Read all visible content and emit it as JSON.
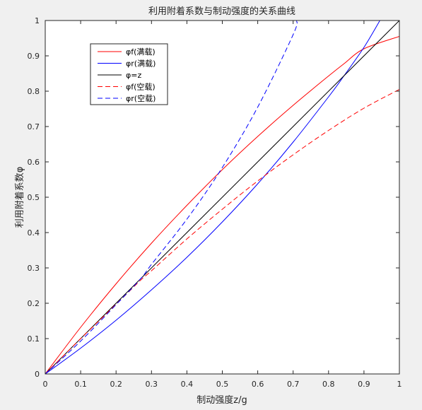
{
  "chart_data": {
    "type": "line",
    "title": "利用附着系数与制动强度的关系曲线",
    "xlabel": "制动强度z/g",
    "ylabel": "利用附着系数φ",
    "xlim": [
      0,
      1
    ],
    "ylim": [
      0,
      1
    ],
    "xticks": [
      "0",
      "0.1",
      "0.2",
      "0.3",
      "0.4",
      "0.5",
      "0.6",
      "0.7",
      "0.8",
      "0.9",
      "1"
    ],
    "yticks": [
      "0",
      "0.1",
      "0.2",
      "0.3",
      "0.4",
      "0.5",
      "0.6",
      "0.7",
      "0.8",
      "0.9",
      "1"
    ],
    "grid": false,
    "legend_position": "upper-left",
    "series": [
      {
        "name": "φf(满载)",
        "color": "#ff0000",
        "dash": "solid",
        "x": [
          0,
          0.1,
          0.2,
          0.3,
          0.4,
          0.5,
          0.6,
          0.7,
          0.8,
          0.844,
          0.9,
          1.0
        ],
        "y": [
          0,
          0.132,
          0.255,
          0.37,
          0.477,
          0.578,
          0.672,
          0.76,
          0.843,
          0.878,
          0.92,
          0.955
        ]
      },
      {
        "name": "φr(满载)",
        "color": "#0000ff",
        "dash": "solid",
        "x": [
          0,
          0.1,
          0.2,
          0.3,
          0.4,
          0.5,
          0.6,
          0.7,
          0.8,
          0.844,
          0.9,
          0.945
        ],
        "y": [
          0,
          0.073,
          0.152,
          0.238,
          0.33,
          0.43,
          0.538,
          0.656,
          0.784,
          0.844,
          0.924,
          1.0
        ]
      },
      {
        "name": "φ=z",
        "color": "#000000",
        "dash": "solid",
        "x": [
          0,
          1
        ],
        "y": [
          0,
          1
        ]
      },
      {
        "name": "φf(空载)",
        "color": "#ff0000",
        "dash": "dashed",
        "x": [
          0,
          0.1,
          0.2,
          0.27,
          0.3,
          0.4,
          0.5,
          0.6,
          0.7,
          0.8,
          0.9,
          1.0
        ],
        "y": [
          0,
          0.1,
          0.197,
          0.266,
          0.292,
          0.382,
          0.466,
          0.546,
          0.62,
          0.689,
          0.752,
          0.805
        ]
      },
      {
        "name": "φr(空载)",
        "color": "#0000ff",
        "dash": "dashed",
        "x": [
          0,
          0.1,
          0.2,
          0.27,
          0.3,
          0.4,
          0.5,
          0.6,
          0.7,
          0.71
        ],
        "y": [
          0,
          0.093,
          0.196,
          0.27,
          0.31,
          0.438,
          0.584,
          0.755,
          0.96,
          1.0
        ]
      }
    ]
  }
}
